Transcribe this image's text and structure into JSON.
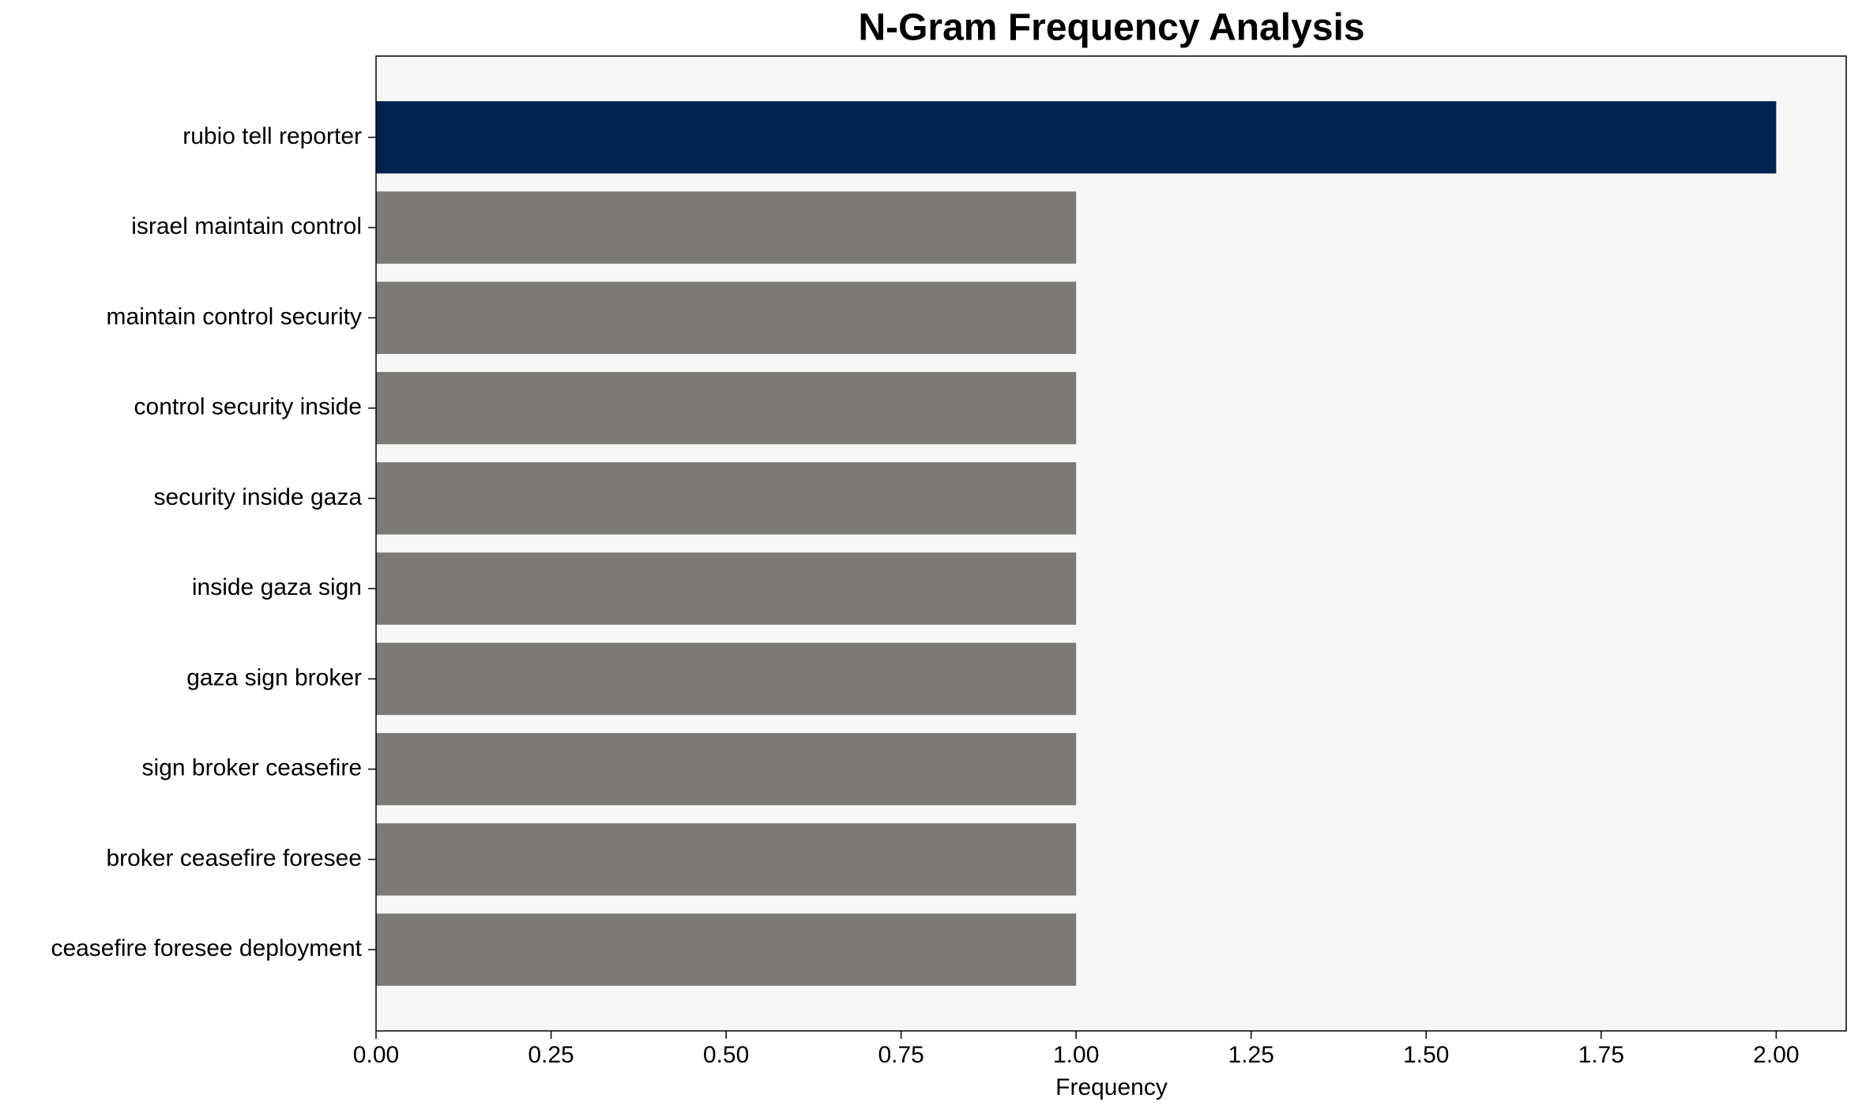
{
  "chart_data": {
    "type": "barh",
    "title": "N-Gram Frequency Analysis",
    "x_label": "Frequency",
    "categories": [
      "rubio tell reporter",
      "israel maintain control",
      "maintain control security",
      "control security inside",
      "security inside gaza",
      "inside gaza sign",
      "gaza sign broker",
      "sign broker ceasefire",
      "broker ceasefire foresee",
      "ceasefire foresee deployment"
    ],
    "values": [
      2,
      1,
      1,
      1,
      1,
      1,
      1,
      1,
      1,
      1
    ],
    "colors": [
      "#00224e",
      "#7b7a76",
      "#7b7a76",
      "#7b7a76",
      "#7b7a76",
      "#7b7a76",
      "#7b7a76",
      "#7b7a76",
      "#7b7a76",
      "#7b7a76"
    ],
    "xlim": [
      0,
      2.1
    ],
    "xticks": [
      {
        "value": 0,
        "label": "0.00"
      },
      {
        "value": 0.25,
        "label": "0.25"
      },
      {
        "value": 0.5,
        "label": "0.50"
      },
      {
        "value": 0.75,
        "label": "0.75"
      },
      {
        "value": 1,
        "label": "1.00"
      },
      {
        "value": 1.25,
        "label": "1.25"
      },
      {
        "value": 1.5,
        "label": "1.50"
      },
      {
        "value": 1.75,
        "label": "1.75"
      },
      {
        "value": 2,
        "label": "2.00"
      }
    ],
    "background": "#f7f7f7"
  }
}
